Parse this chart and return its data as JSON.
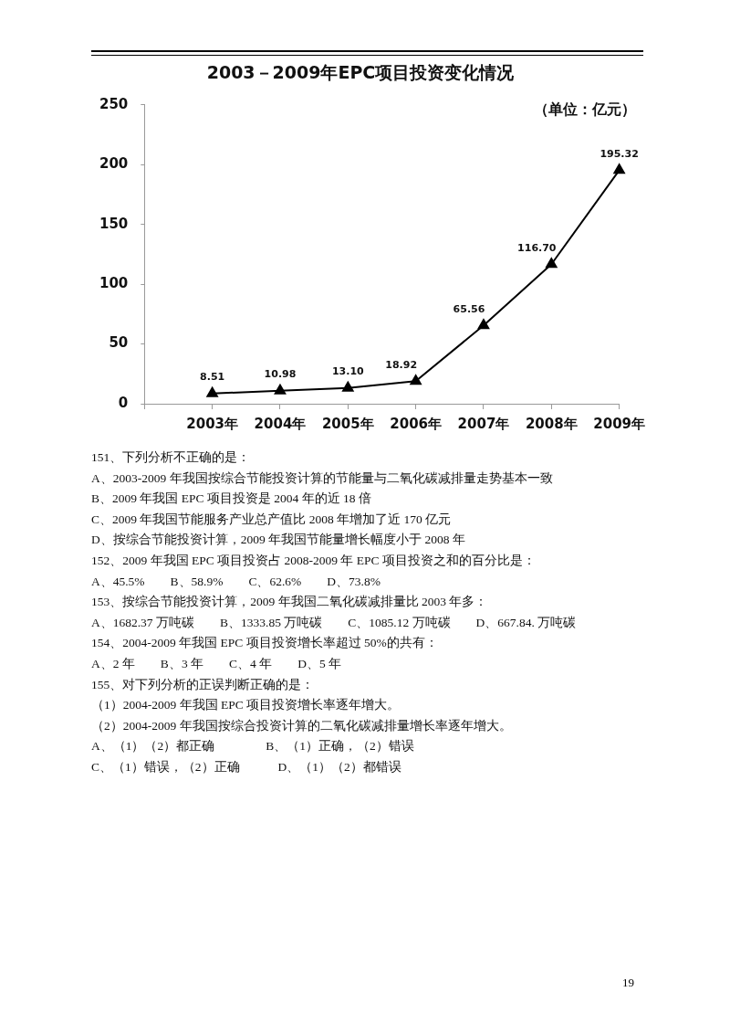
{
  "chart_data": {
    "type": "line",
    "title": "2003－2009年EPC项目投资变化情况",
    "ylabel": "（单位：亿元）",
    "categories": [
      null,
      "2003年",
      "2004年",
      "2005年",
      "2006年",
      "2007年",
      "2008年",
      "2009年"
    ],
    "series": [
      {
        "color": "#000000",
        "values": [
          null,
          8.51,
          10.98,
          13.1,
          18.92,
          65.56,
          116.7,
          195.32
        ],
        "value_labels": [
          null,
          "8.51",
          "10.98",
          "13.10",
          "18.92",
          "65.56",
          "116.70",
          "195.32"
        ]
      }
    ],
    "ylim": [
      0,
      250
    ],
    "yticks": [
      0,
      50,
      100,
      150,
      200,
      250
    ],
    "grid": false,
    "legend": false,
    "marker": "triangle",
    "line_style": "solid",
    "annotations": [
      "151、下列分析不正确的是：",
      "A、2003-2009 年我国按综合节能投资计算的节能量与二氧化碳减排量走势基本一致",
      "B、2009 年我国 EPC 项目投资是 2004 年的近 18 倍",
      "C、2009 年我国节能服务产业总产值比 2008 年增加了近 170 亿元",
      "D、按综合节能投资计算，2009 年我国节能量增长幅度小于 2008 年",
      "152、2009 年我国 EPC 项目投资占 2008-2009 年 EPC 项目投资之和的百分比是：",
      "A、45.5%　　B、58.9%　　C、62.6%　　D、73.8%",
      "153、按综合节能投资计算，2009 年我国二氧化碳减排量比 2003 年多：",
      "A、1682.37 万吨碳　　B、1333.85 万吨碳　　C、1085.12 万吨碳　　D、667.84. 万吨碳",
      "154、2004-2009 年我国 EPC 项目投资增长率超过 50%的共有：",
      "A、2 年　　B、3 年　　C、4 年　　D、5 年",
      "155、对下列分析的正误判断正确的是：",
      "（1）2004-2009 年我国 EPC 项目投资增长率逐年增大。",
      "（2）2004-2009 年我国按综合投资计算的二氧化碳减排量增长率逐年增大。",
      "A、（1）（2）都正确　　　　B、（1）正确，（2）错误",
      "C、（1）错误，（2）正确　　　D、（1）（2）都错误",
      "19"
    ]
  }
}
